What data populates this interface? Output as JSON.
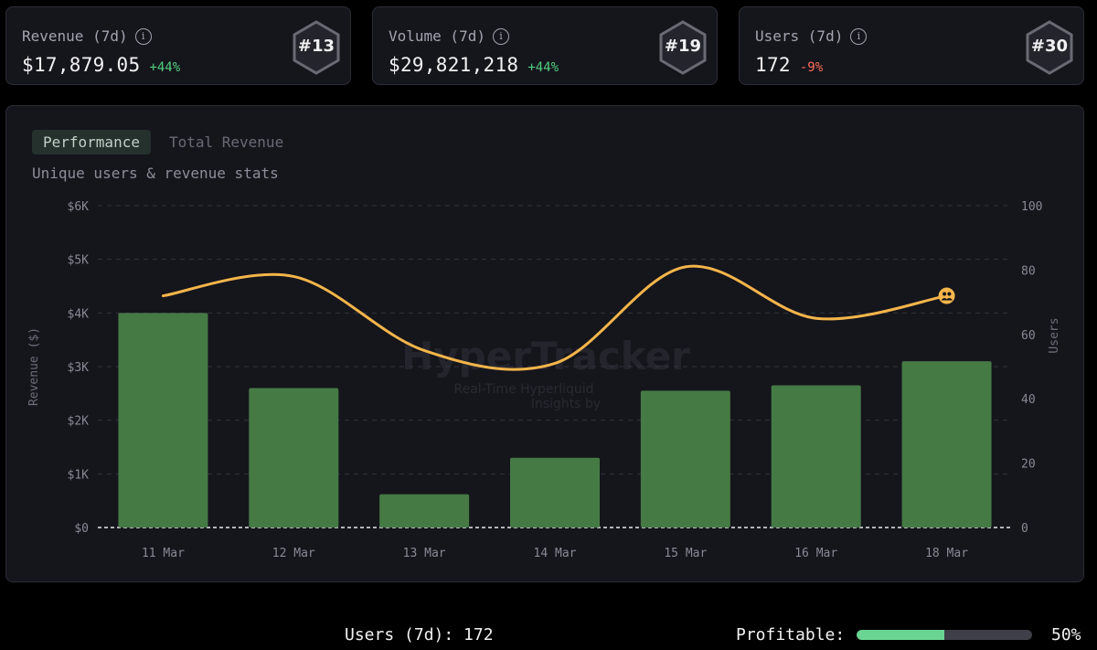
{
  "stats": [
    {
      "title": "Revenue (7d)",
      "value": "$17,879.05",
      "delta": "+44%",
      "delta_dir": "up",
      "rank": "#13"
    },
    {
      "title": "Volume (7d)",
      "value": "$29,821,218",
      "delta": "+44%",
      "delta_dir": "up",
      "rank": "#19"
    },
    {
      "title": "Users (7d)",
      "value": "172",
      "delta": "-9%",
      "delta_dir": "down",
      "rank": "#30"
    }
  ],
  "tabs": {
    "performance": "Performance",
    "total_revenue": "Total Revenue"
  },
  "subtitle": "Unique users & revenue stats",
  "watermark": {
    "brand": "HyperTracker",
    "line1": "Real-Time Hyperliquid",
    "line2": "Insights by"
  },
  "chart_data": {
    "type": "bar+line",
    "categories": [
      "11 Mar",
      "12 Mar",
      "13 Mar",
      "14 Mar",
      "15 Mar",
      "16 Mar",
      "18 Mar"
    ],
    "series": [
      {
        "name": "Revenue ($)",
        "type": "bar",
        "axis": "left",
        "color": "#457a45",
        "values": [
          4000,
          2600,
          620,
          1300,
          2550,
          2650,
          3100
        ]
      },
      {
        "name": "Users",
        "type": "line",
        "axis": "right",
        "color": "#f4b54a",
        "values": [
          72,
          78,
          55,
          51,
          81,
          65,
          72
        ]
      }
    ],
    "y_left": {
      "label": "Revenue ($)",
      "min": 0,
      "max": 6000,
      "ticks": [
        "$0",
        "$1K",
        "$2K",
        "$3K",
        "$4K",
        "$5K",
        "$6K"
      ]
    },
    "y_right": {
      "label": "Users",
      "min": 0,
      "max": 100,
      "ticks": [
        "0",
        "20",
        "40",
        "60",
        "80",
        "100"
      ]
    },
    "grid": true
  },
  "footer": {
    "users_text": "Users (7d): 172",
    "profitable_label": "Profitable:",
    "profitable_pct": 50,
    "profitable_text": "50%"
  },
  "colors": {
    "accent_green": "#4fd07f",
    "negative": "#ff6e5a",
    "bar": "#457a45",
    "line": "#f4b54a"
  }
}
